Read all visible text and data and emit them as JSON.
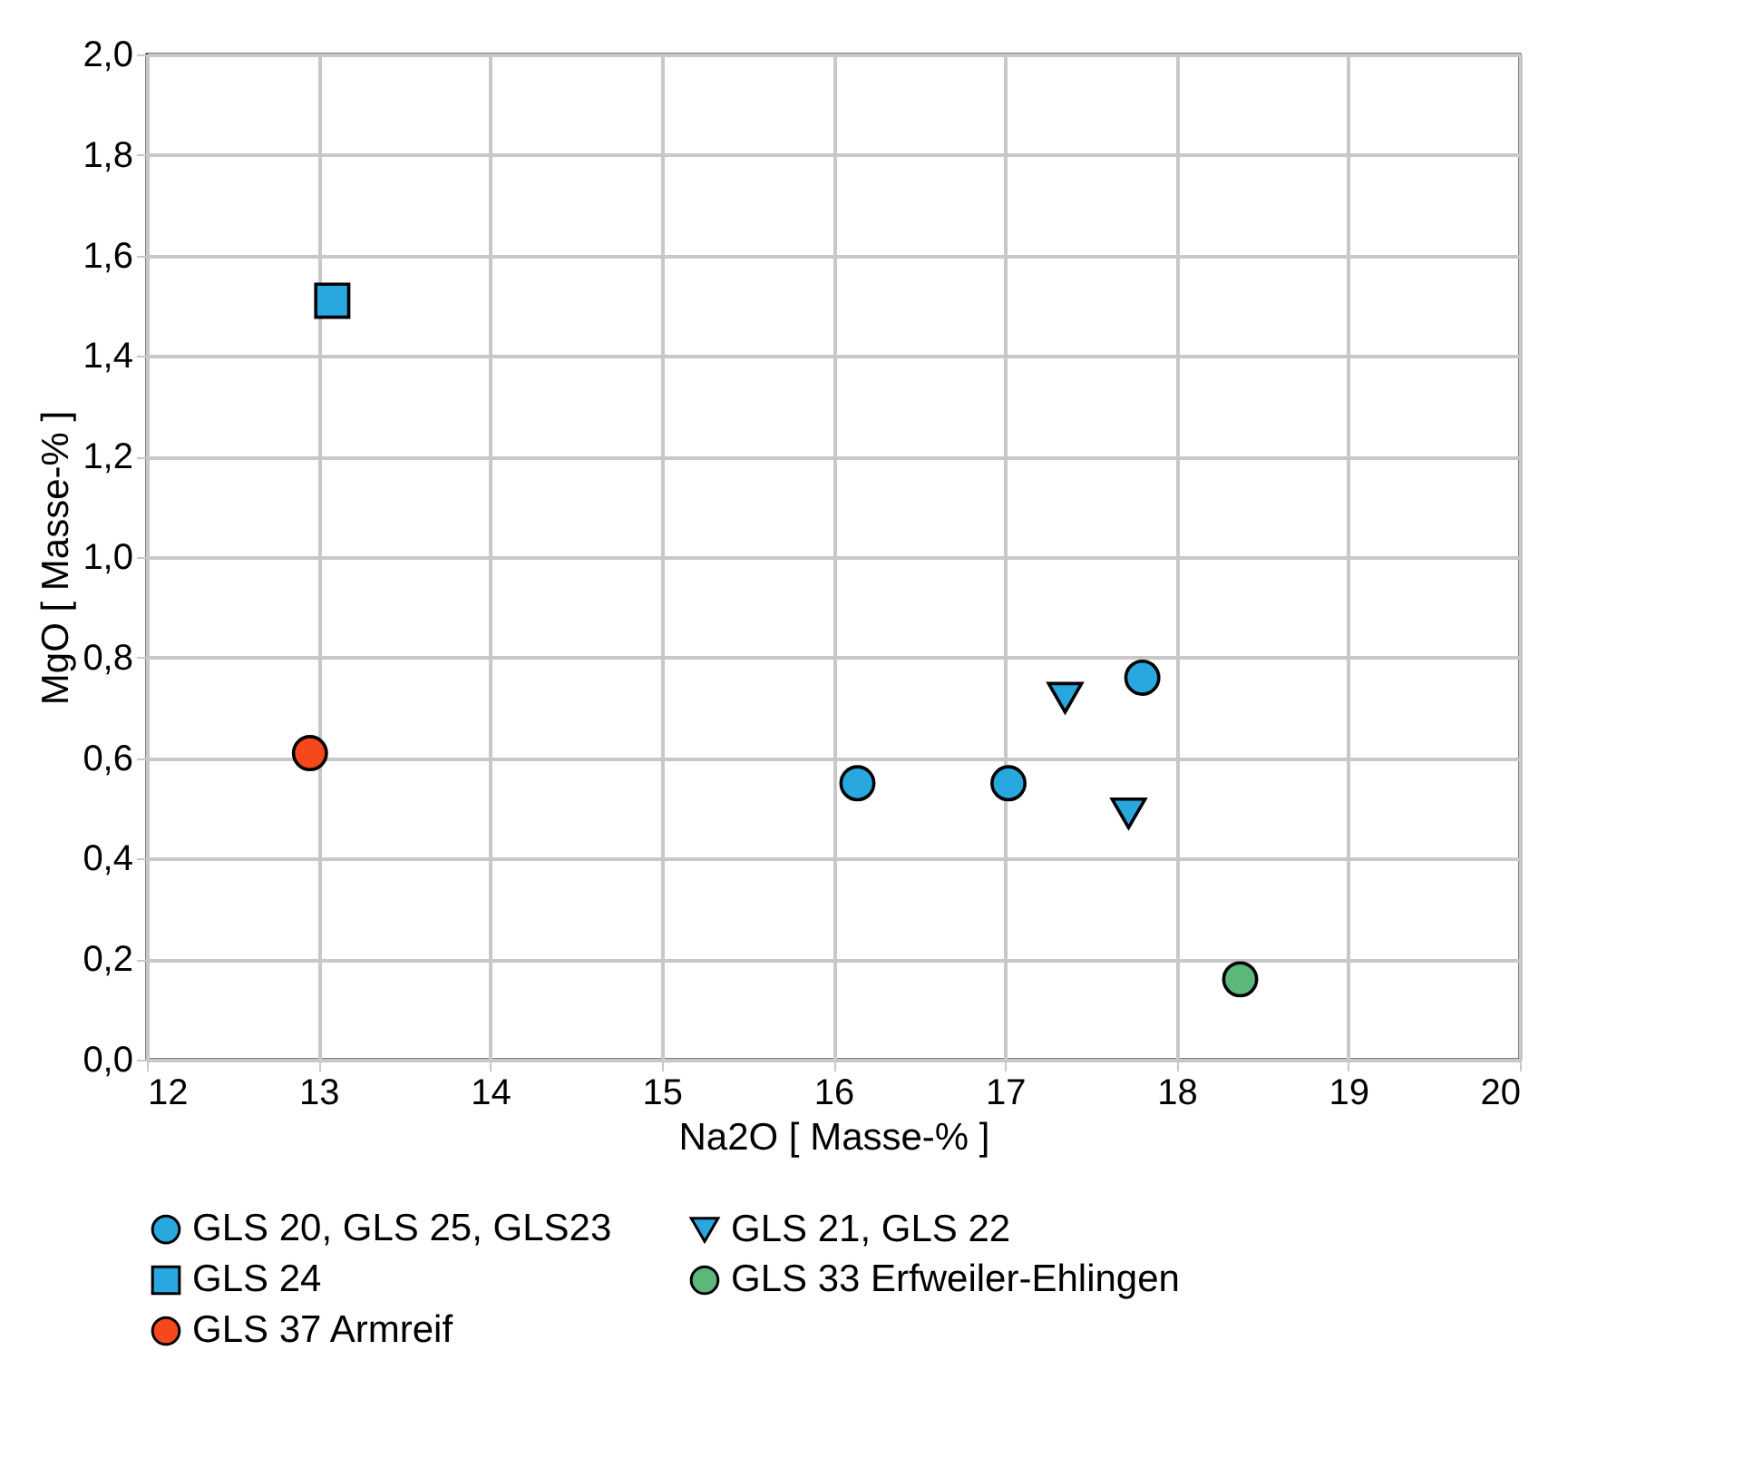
{
  "chart_data": {
    "type": "scatter",
    "xlabel": "Na2O [ Masse-% ]",
    "ylabel": "MgO [ Masse-% ]",
    "xlim": [
      12,
      20
    ],
    "xticks": [
      12,
      13,
      14,
      15,
      16,
      17,
      18,
      19,
      20
    ],
    "ylim": [
      0,
      2
    ],
    "yticks": [
      {
        "value": 0,
        "label": "0,0"
      },
      {
        "value": 0.2,
        "label": "0,2"
      },
      {
        "value": 0.4,
        "label": "0,4"
      },
      {
        "value": 0.6,
        "label": "0,6"
      },
      {
        "value": 0.8,
        "label": "0,8"
      },
      {
        "value": 1,
        "label": "1,0"
      },
      {
        "value": 1.2,
        "label": "1,2"
      },
      {
        "value": 1.4,
        "label": "1,4"
      },
      {
        "value": 1.6,
        "label": "1,6"
      },
      {
        "value": 1.8,
        "label": "1,8"
      },
      {
        "value": 2,
        "label": "2,0"
      }
    ],
    "grid": true,
    "legend": "bottom",
    "series": [
      {
        "name": "GLS 20, GLS 25, GLS23",
        "color": "#29a8e0",
        "marker": "circle",
        "x": [
          16.14,
          17.02,
          17.8
        ],
        "values": [
          0.55,
          0.55,
          0.76
        ]
      },
      {
        "name": "GLS 21, GLS 22",
        "color": "#29a8e0",
        "marker": "triangle",
        "x": [
          17.35,
          17.72
        ],
        "values": [
          0.72,
          0.49
        ]
      },
      {
        "name": "GLS 24",
        "color": "#29a8e0",
        "marker": "square",
        "x": [
          13.08
        ],
        "values": [
          1.51
        ]
      },
      {
        "name": "GLS 33 Erfweiler-Ehlingen",
        "color": "#5cb87a",
        "marker": "circle",
        "x": [
          18.37
        ],
        "values": [
          0.16
        ]
      },
      {
        "name": "GLS 37 Armreif",
        "color": "#f5481c",
        "marker": "circle",
        "x": [
          12.95
        ],
        "values": [
          0.61
        ]
      }
    ]
  }
}
